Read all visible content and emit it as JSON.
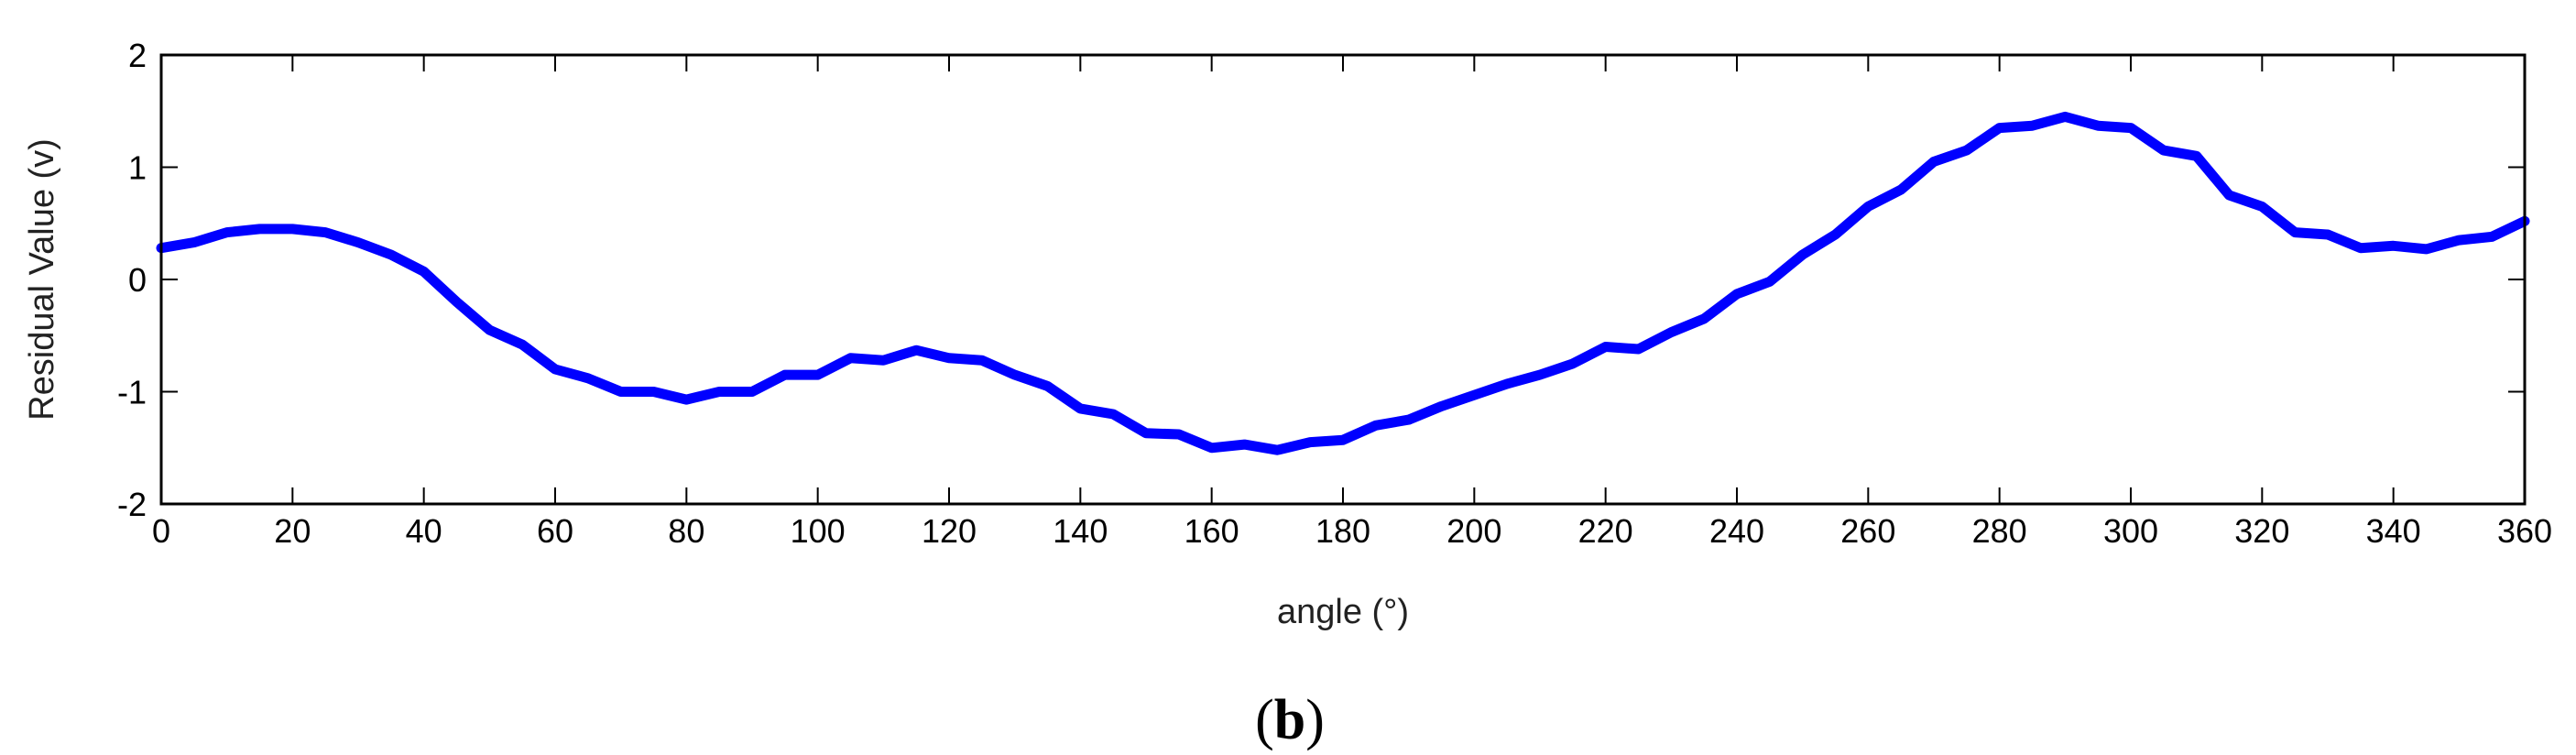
{
  "chart_data": {
    "type": "line",
    "title": "",
    "xlabel": "angle (°)",
    "ylabel": "Residual Value (v)",
    "xlim": [
      0,
      360
    ],
    "ylim": [
      -2,
      2
    ],
    "xticks": [
      "0",
      "20",
      "40",
      "60",
      "80",
      "100",
      "120",
      "140",
      "160",
      "180",
      "200",
      "220",
      "240",
      "260",
      "280",
      "300",
      "320",
      "340",
      "360"
    ],
    "yticks": [
      "-2",
      "-1",
      "0",
      "1",
      "2"
    ],
    "grid": false,
    "legend": "none",
    "series": [
      {
        "color": "#0000ff",
        "x": [
          0,
          5,
          10,
          15,
          20,
          25,
          30,
          35,
          40,
          45,
          50,
          55,
          60,
          65,
          70,
          75,
          80,
          85,
          90,
          95,
          100,
          105,
          110,
          115,
          120,
          125,
          130,
          135,
          140,
          145,
          150,
          155,
          160,
          165,
          170,
          175,
          180,
          185,
          190,
          195,
          200,
          205,
          210,
          215,
          220,
          225,
          230,
          235,
          240,
          245,
          250,
          255,
          260,
          265,
          270,
          275,
          280,
          285,
          290,
          295,
          300,
          305,
          310,
          315,
          320,
          325,
          330,
          335,
          340,
          345,
          350,
          355,
          360
        ],
        "y": [
          0.28,
          0.33,
          0.42,
          0.45,
          0.45,
          0.42,
          0.33,
          0.22,
          0.07,
          -0.2,
          -0.45,
          -0.58,
          -0.8,
          -0.88,
          -1.0,
          -1.0,
          -1.07,
          -1.0,
          -1.0,
          -0.85,
          -0.85,
          -0.7,
          -0.72,
          -0.63,
          -0.7,
          -0.72,
          -0.85,
          -0.95,
          -1.15,
          -1.2,
          -1.37,
          -1.38,
          -1.5,
          -1.47,
          -1.52,
          -1.45,
          -1.43,
          -1.3,
          -1.25,
          -1.13,
          -1.03,
          -0.93,
          -0.85,
          -0.75,
          -0.6,
          -0.62,
          -0.47,
          -0.35,
          -0.13,
          -0.02,
          0.22,
          0.4,
          0.65,
          0.8,
          1.05,
          1.15,
          1.35,
          1.37,
          1.45,
          1.37,
          1.35,
          1.15,
          1.1,
          0.75,
          0.65,
          0.42,
          0.4,
          0.28,
          0.3,
          0.27,
          0.35,
          0.38,
          0.52
        ]
      }
    ]
  },
  "figure": {
    "panel_label": "b"
  }
}
